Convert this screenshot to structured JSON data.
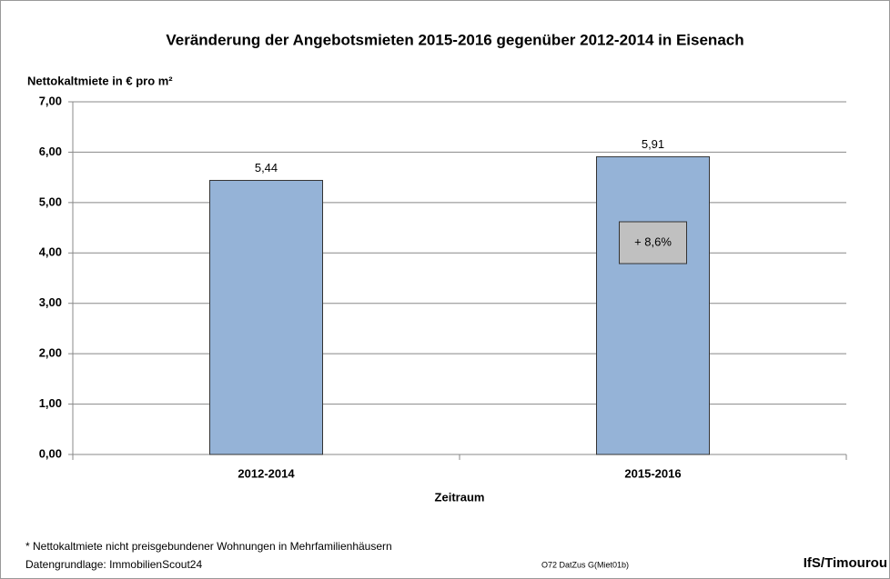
{
  "chart_data": {
    "type": "bar",
    "title": "Veränderung der Angebotsmieten 2015-2016 gegenüber 2012-2014 in Eisenach",
    "y_label": "Nettokaltmiete in € pro m²",
    "x_label": "Zeitraum",
    "categories": [
      "2012-2014",
      "2015-2016"
    ],
    "values": [
      5.44,
      5.91
    ],
    "value_labels": [
      "5,44",
      "5,91"
    ],
    "color": "#95b3d7",
    "ylim": [
      0,
      7
    ],
    "yticks": [
      {
        "value": 0,
        "label": "0,00"
      },
      {
        "value": 1,
        "label": "1,00"
      },
      {
        "value": 2,
        "label": "2,00"
      },
      {
        "value": 3,
        "label": "3,00"
      },
      {
        "value": 4,
        "label": "4,00"
      },
      {
        "value": 5,
        "label": "5,00"
      },
      {
        "value": 6,
        "label": "6,00"
      },
      {
        "value": 7,
        "label": "7,00"
      }
    ],
    "grid": true,
    "annotation": "+ 8,6%",
    "footnote": "* Nettokaltmiete nicht preisgebundener Wohnungen in Mehrfamilienhäusern",
    "source": "Datengrundlage: ImmobilienScout24",
    "code": "O72 DatZus G(Miet01b)",
    "author": "IfS/Timourou"
  }
}
